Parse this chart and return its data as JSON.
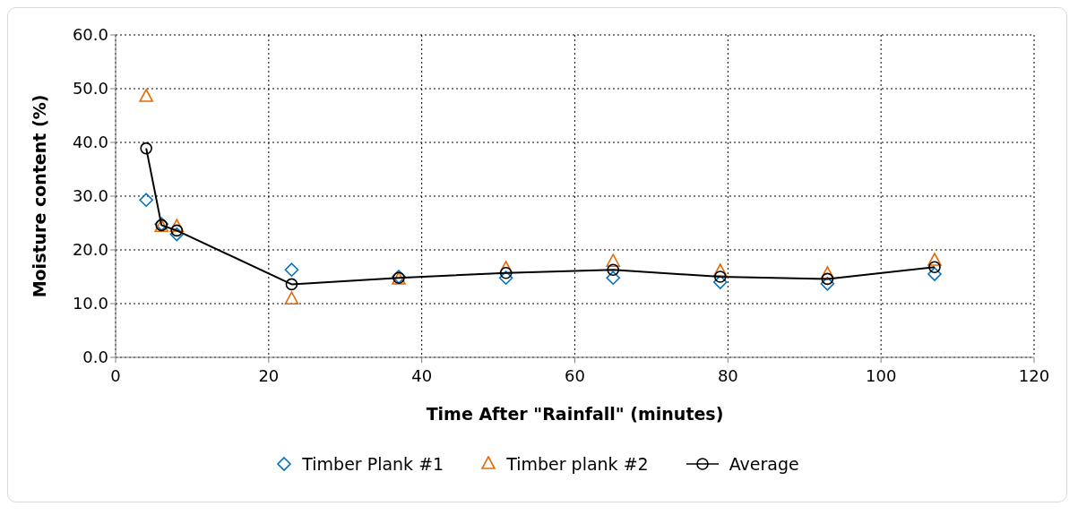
{
  "chart_data": {
    "type": "scatter",
    "xlabel": "Time After \"Rainfall\" (minutes)",
    "ylabel": "Moisture content (%)",
    "x": [
      4,
      6,
      8,
      23,
      37,
      51,
      65,
      79,
      93,
      107
    ],
    "series": [
      {
        "name": "Timber Plank #1",
        "marker": "diamond",
        "color": "#0070c0",
        "values": [
          29.3,
          24.8,
          22.9,
          16.3,
          15.0,
          14.8,
          14.8,
          14.0,
          13.7,
          15.5
        ]
      },
      {
        "name": "Timber plank #2",
        "marker": "triangle",
        "color": "#e36c09",
        "values": [
          48.5,
          24.3,
          24.3,
          10.8,
          14.5,
          16.5,
          17.8,
          16.0,
          15.5,
          18.0
        ]
      },
      {
        "name": "Average",
        "type": "line",
        "marker": "circle",
        "color": "#000000",
        "values": [
          38.9,
          24.6,
          23.6,
          13.6,
          14.8,
          15.7,
          16.3,
          15.0,
          14.6,
          16.8
        ]
      }
    ],
    "xlim": [
      0,
      120
    ],
    "xticks": [
      0,
      20,
      40,
      60,
      80,
      100,
      120
    ],
    "ylim": [
      0,
      60
    ],
    "yticks": [
      {
        "value": 0,
        "label": "0.0"
      },
      {
        "value": 10,
        "label": "10.0"
      },
      {
        "value": 20,
        "label": "20.0"
      },
      {
        "value": 30,
        "label": "30.0"
      },
      {
        "value": 40,
        "label": "40.0"
      },
      {
        "value": 50,
        "label": "50.0"
      },
      {
        "value": 60,
        "label": "60.0"
      }
    ],
    "grid": true,
    "legend": "bottom"
  }
}
